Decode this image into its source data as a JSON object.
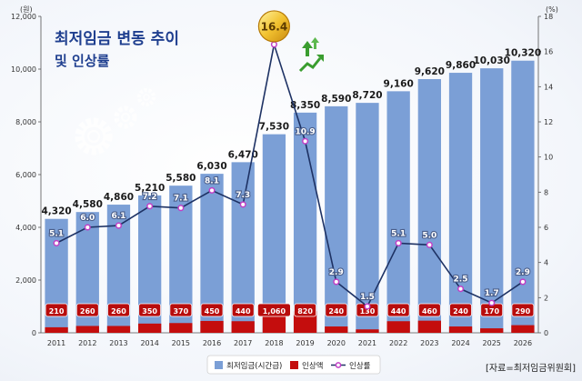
{
  "title": {
    "line1": "최저임금 변동 추이",
    "line2": "및 인상률"
  },
  "source": "[자료=최저임금위원회]",
  "units": {
    "left": "(원)",
    "right": "(%)"
  },
  "colors": {
    "wage_bar": "#7b9fd6",
    "increase_bar": "#c40d0d",
    "rate_line": "#1e3264",
    "rate_marker": "#c13fc6"
  },
  "chart_data": {
    "type": "bar",
    "categories": [
      "2011",
      "2012",
      "2013",
      "2014",
      "2015",
      "2016",
      "2017",
      "2018",
      "2019",
      "2020",
      "2021",
      "2022",
      "2023",
      "2024",
      "2025",
      "2026"
    ],
    "series": [
      {
        "name": "최저임금(시간급)",
        "type": "bar",
        "axis": "left",
        "values": [
          4320,
          4580,
          4860,
          5210,
          5580,
          6030,
          6470,
          7530,
          8350,
          8590,
          8720,
          9160,
          9620,
          9860,
          10030,
          10320
        ],
        "labels": [
          "4,320",
          "4,580",
          "4,860",
          "5,210",
          "5,580",
          "6,030",
          "6,470",
          "7,530",
          "8,350",
          "8,590",
          "8,720",
          "9,160",
          "9,620",
          "9,860",
          "10,030",
          "10,320"
        ]
      },
      {
        "name": "인상액",
        "type": "bar",
        "axis": "left",
        "values": [
          210,
          260,
          260,
          350,
          370,
          450,
          440,
          1060,
          820,
          240,
          130,
          440,
          460,
          240,
          170,
          290
        ],
        "labels": [
          "210",
          "260",
          "260",
          "350",
          "370",
          "450",
          "440",
          "1,060",
          "820",
          "240",
          "130",
          "440",
          "460",
          "240",
          "170",
          "290"
        ]
      },
      {
        "name": "인상률",
        "type": "line",
        "axis": "right",
        "values": [
          5.1,
          6.0,
          6.1,
          7.2,
          7.1,
          8.1,
          7.3,
          16.4,
          10.9,
          2.9,
          1.5,
          5.1,
          5.0,
          2.5,
          1.7,
          2.9
        ],
        "labels": [
          "5.1",
          "6.0",
          "6.1",
          "7.2",
          "7.1",
          "8.1",
          "7.3",
          "16.4",
          "10.9",
          "2.9",
          "1.5",
          "5.1",
          "5.0",
          "2.5",
          "1.7",
          "2.9"
        ]
      }
    ],
    "y_left": {
      "min": 0,
      "max": 12000,
      "ticks": [
        "0",
        "2,000",
        "4,000",
        "6,000",
        "8,000",
        "10,000",
        "12,000"
      ]
    },
    "y_right": {
      "min": 0,
      "max": 18,
      "ticks": [
        "0",
        "2",
        "4",
        "6",
        "8",
        "10",
        "12",
        "14",
        "16",
        "18"
      ]
    },
    "legend_position": "bottom",
    "grid": false
  }
}
